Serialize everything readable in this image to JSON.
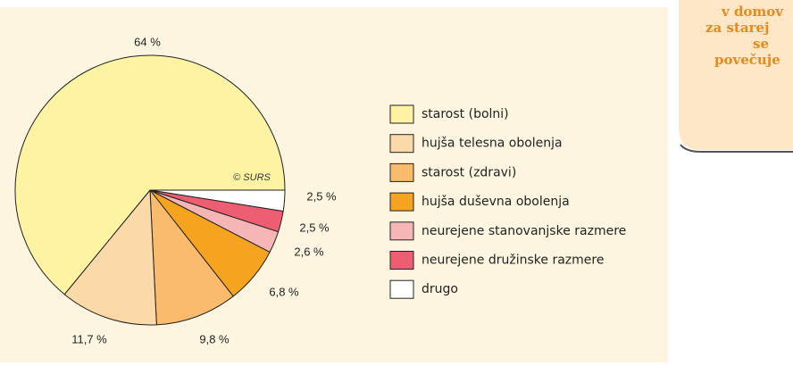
{
  "chart_data": {
    "type": "pie",
    "categories": [
      "starost (bolni)",
      "hujša telesna obolenja",
      "starost (zdravi)",
      "hujša duševna obolenja",
      "neurejene stanovanjske razmere",
      "neurejene družinske razmere",
      "drugo"
    ],
    "values": [
      64,
      11.7,
      9.8,
      6.8,
      2.6,
      2.5,
      2.5
    ],
    "value_labels": [
      "64 %",
      "11,7 %",
      "9,8 %",
      "6,8 %",
      "2,6 %",
      "2,5 %",
      "2,5 %"
    ],
    "colors": [
      "#fdf3a2",
      "#fcd9a8",
      "#fbbb6c",
      "#f6a31f",
      "#f7b6b6",
      "#ee5e73",
      "#ffffff"
    ],
    "source": "© SURS",
    "side_box": [
      "v domov",
      "za starej",
      "se",
      "povečuje"
    ]
  }
}
